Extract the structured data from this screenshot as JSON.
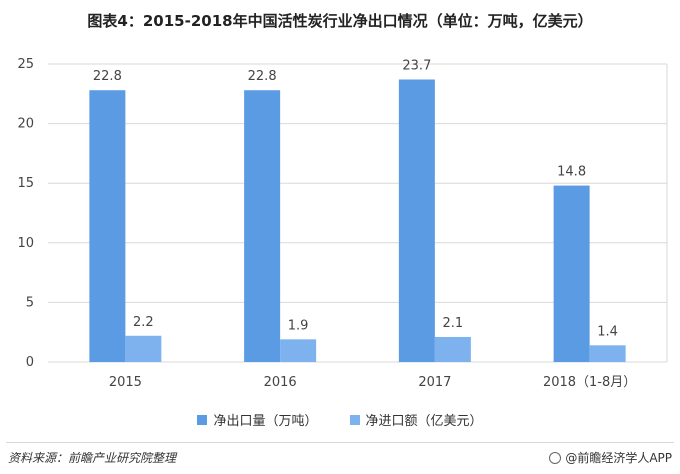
{
  "title": "图表4：2015-2018年中国活性炭行业净出口情况（单位：万吨，亿美元）",
  "legend": {
    "series1": "净出口量（万吨）",
    "series2": "净进口额（亿美元）"
  },
  "footer": {
    "source": "资料来源：前瞻产业研究院整理",
    "brand": "@前瞻经济学人APP"
  },
  "colors": {
    "series1": "#5b9be4",
    "series2": "#7eb2ef",
    "grid": "#d9d9d9"
  },
  "chart_data": {
    "type": "bar",
    "categories": [
      "2015",
      "2016",
      "2017",
      "2018（1-8月）"
    ],
    "series": [
      {
        "name": "净出口量（万吨）",
        "values": [
          22.8,
          22.8,
          23.7,
          14.8
        ]
      },
      {
        "name": "净进口额（亿美元）",
        "values": [
          2.2,
          1.9,
          2.1,
          1.4
        ]
      }
    ],
    "yticks": [
      0,
      5,
      10,
      15,
      20,
      25
    ],
    "ylim": [
      0,
      25
    ],
    "grid": true,
    "legend_position": "bottom"
  }
}
